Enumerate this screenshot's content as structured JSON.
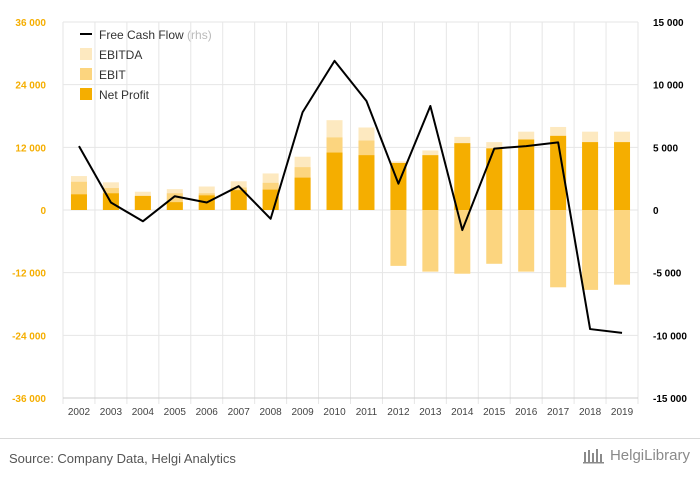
{
  "chart_data": {
    "type": "bar+line",
    "categories": [
      "2002",
      "2003",
      "2004",
      "2005",
      "2006",
      "2007",
      "2008",
      "2009",
      "2010",
      "2011",
      "2012",
      "2013",
      "2014",
      "2015",
      "2016",
      "2017",
      "2018",
      "2019"
    ],
    "series": [
      {
        "name": "EBITDA",
        "kind": "bar",
        "axis": "left",
        "color": "#fde9c0",
        "values": [
          6500,
          5300,
          3500,
          4000,
          4500,
          5500,
          7000,
          10200,
          17200,
          15800,
          9300,
          11400,
          14000,
          13000,
          15000,
          15900,
          15000,
          15000
        ]
      },
      {
        "name": "EBIT",
        "kind": "bar",
        "axis": "left",
        "color": "#fcd57f",
        "values": [
          5400,
          4200,
          2600,
          3200,
          3200,
          4300,
          5200,
          8200,
          13900,
          13300,
          -10700,
          -11800,
          -12200,
          -10300,
          -11800,
          -14800,
          -15300,
          -14300
        ]
      },
      {
        "name": "Net Profit",
        "kind": "bar",
        "axis": "left",
        "color": "#f5ae00",
        "values": [
          3000,
          3200,
          2700,
          1500,
          2800,
          3800,
          3900,
          6200,
          11000,
          10500,
          9000,
          10500,
          12800,
          11800,
          13500,
          14200,
          13000,
          13000
        ]
      },
      {
        "name": "Free Cash Flow",
        "kind": "line",
        "axis": "right",
        "color": "#000000",
        "values": [
          5100,
          600,
          -900,
          1100,
          600,
          1900,
          -700,
          7800,
          11900,
          8700,
          2100,
          8300,
          -1600,
          4900,
          5100,
          5400,
          -9500,
          -9800
        ]
      }
    ],
    "legend": [
      {
        "label": "Free Cash Flow",
        "suffix": "(rhs)",
        "color": "#000000"
      },
      {
        "label": "EBITDA",
        "color": "#fde9c0"
      },
      {
        "label": "EBIT",
        "color": "#fcd57f"
      },
      {
        "label": "Net Profit",
        "color": "#f5ae00"
      }
    ],
    "y_left": {
      "ylim": [
        -36000,
        36000
      ],
      "ticks": [
        "36 000",
        "24 000",
        "12 000",
        "0",
        "-12 000",
        "-24 000",
        "-36 000"
      ],
      "tick_values": [
        36000,
        24000,
        12000,
        0,
        -12000,
        -24000,
        -36000
      ],
      "color": "#f5ae00"
    },
    "y_right": {
      "ylim": [
        -15000,
        15000
      ],
      "ticks": [
        "15 000",
        "10 000",
        "5 000",
        "0",
        "-5 000",
        "-10 000",
        "-15 000"
      ],
      "tick_values": [
        15000,
        10000,
        5000,
        0,
        -5000,
        -10000,
        -15000
      ],
      "color": "#000000"
    },
    "grid": true,
    "legend_position": "top-left"
  },
  "footer": {
    "source": "Source: Company Data, Helgi Analytics",
    "logo_text": "HelgiLibrary"
  }
}
